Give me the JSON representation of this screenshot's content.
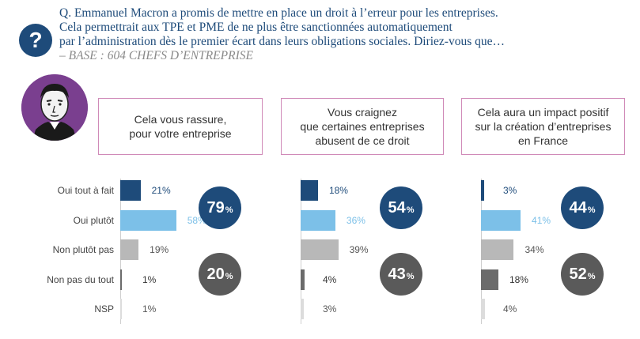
{
  "question": {
    "icon": "?",
    "line1": "Q. Emmanuel Macron a promis de mettre en place un droit à l’erreur pour les entreprises.",
    "line2": "Cela permettrait aux TPE et PME de ne plus être sanctionnées automatiquement",
    "line3": "par l’administration dès le premier écart dans leurs obligations sociales. Diriez-vous que…",
    "base": "– BASE : 604 CHEFS D’ENTREPRISE"
  },
  "portrait_icon": "portrait-icon",
  "colors": {
    "navy": "#1e4b7a",
    "light_blue": "#7cc0e8",
    "light_gray": "#b8b8b8",
    "dark_gray": "#6b6b6b",
    "pale_gray": "#dcdcdc",
    "circle_gray": "#5a5a5a",
    "box_border": "#d08ab8",
    "portrait_purple": "#7a3f8f"
  },
  "chart_data": {
    "type": "bar",
    "categories": [
      "Oui tout à fait",
      "Oui plutôt",
      "Non plutôt pas",
      "Non pas du tout",
      "NSP"
    ],
    "panels": [
      {
        "header": [
          "Cela vous rassure,",
          "pour votre entreprise"
        ],
        "values": [
          21,
          58,
          19,
          1,
          1
        ],
        "labels": [
          "21%",
          "58%",
          "19%",
          "1%",
          "1%"
        ],
        "total_yes": "79",
        "total_no": "20"
      },
      {
        "header": [
          "Vous craignez",
          "que certaines entreprises",
          "abusent de ce droit"
        ],
        "values": [
          18,
          36,
          39,
          4,
          3
        ],
        "labels": [
          "18%",
          "36%",
          "39%",
          "4%",
          "3%"
        ],
        "total_yes": "54",
        "total_no": "43"
      },
      {
        "header": [
          "Cela aura un impact positif",
          "sur la création d’entreprises",
          "en France"
        ],
        "values": [
          3,
          41,
          34,
          18,
          4
        ],
        "labels": [
          "3%",
          "41%",
          "34%",
          "18%",
          "4%"
        ],
        "total_yes": "44",
        "total_no": "52"
      }
    ],
    "percent_suffix": "%"
  }
}
